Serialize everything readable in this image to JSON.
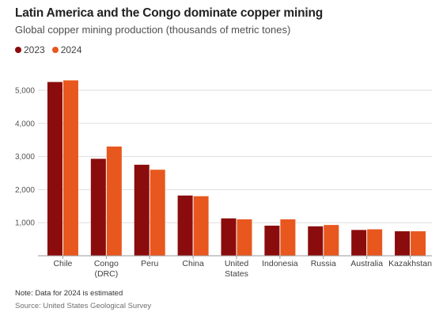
{
  "title": "Latin America and the Congo dominate copper mining",
  "subtitle": "Global copper mining production (thousands of metric tones)",
  "note": "Note: Data for 2024 is estimated",
  "source": "Source: United States Geological Survey",
  "colors": {
    "2023": "#8b0c0c",
    "2024": "#e8571e",
    "grid": "#dedede",
    "axis": "#9a9a9a"
  },
  "chart_data": {
    "type": "bar",
    "title": "Latin America and the Congo dominate copper mining",
    "subtitle": "Global copper mining production (thousands of metric tones)",
    "categories": [
      [
        "Chile"
      ],
      [
        "Congo",
        "(DRC)"
      ],
      [
        "Peru"
      ],
      [
        "China"
      ],
      [
        "United",
        "States"
      ],
      [
        "Indonesia"
      ],
      [
        "Russia"
      ],
      [
        "Australia"
      ],
      [
        "Kazakhstan"
      ]
    ],
    "series": [
      {
        "name": "2023",
        "values": [
          5250,
          2930,
          2750,
          1820,
          1130,
          910,
          890,
          780,
          740
        ]
      },
      {
        "name": "2024",
        "values": [
          5300,
          3300,
          2600,
          1800,
          1100,
          1100,
          930,
          800,
          740
        ]
      }
    ],
    "yticks": [
      1000,
      2000,
      3000,
      4000,
      5000
    ],
    "ytick_labels": [
      "1,000",
      "2,000",
      "3,000",
      "4,000",
      "5,000"
    ],
    "ylim": [
      0,
      5600
    ],
    "grid": true,
    "legend": "top-left"
  }
}
